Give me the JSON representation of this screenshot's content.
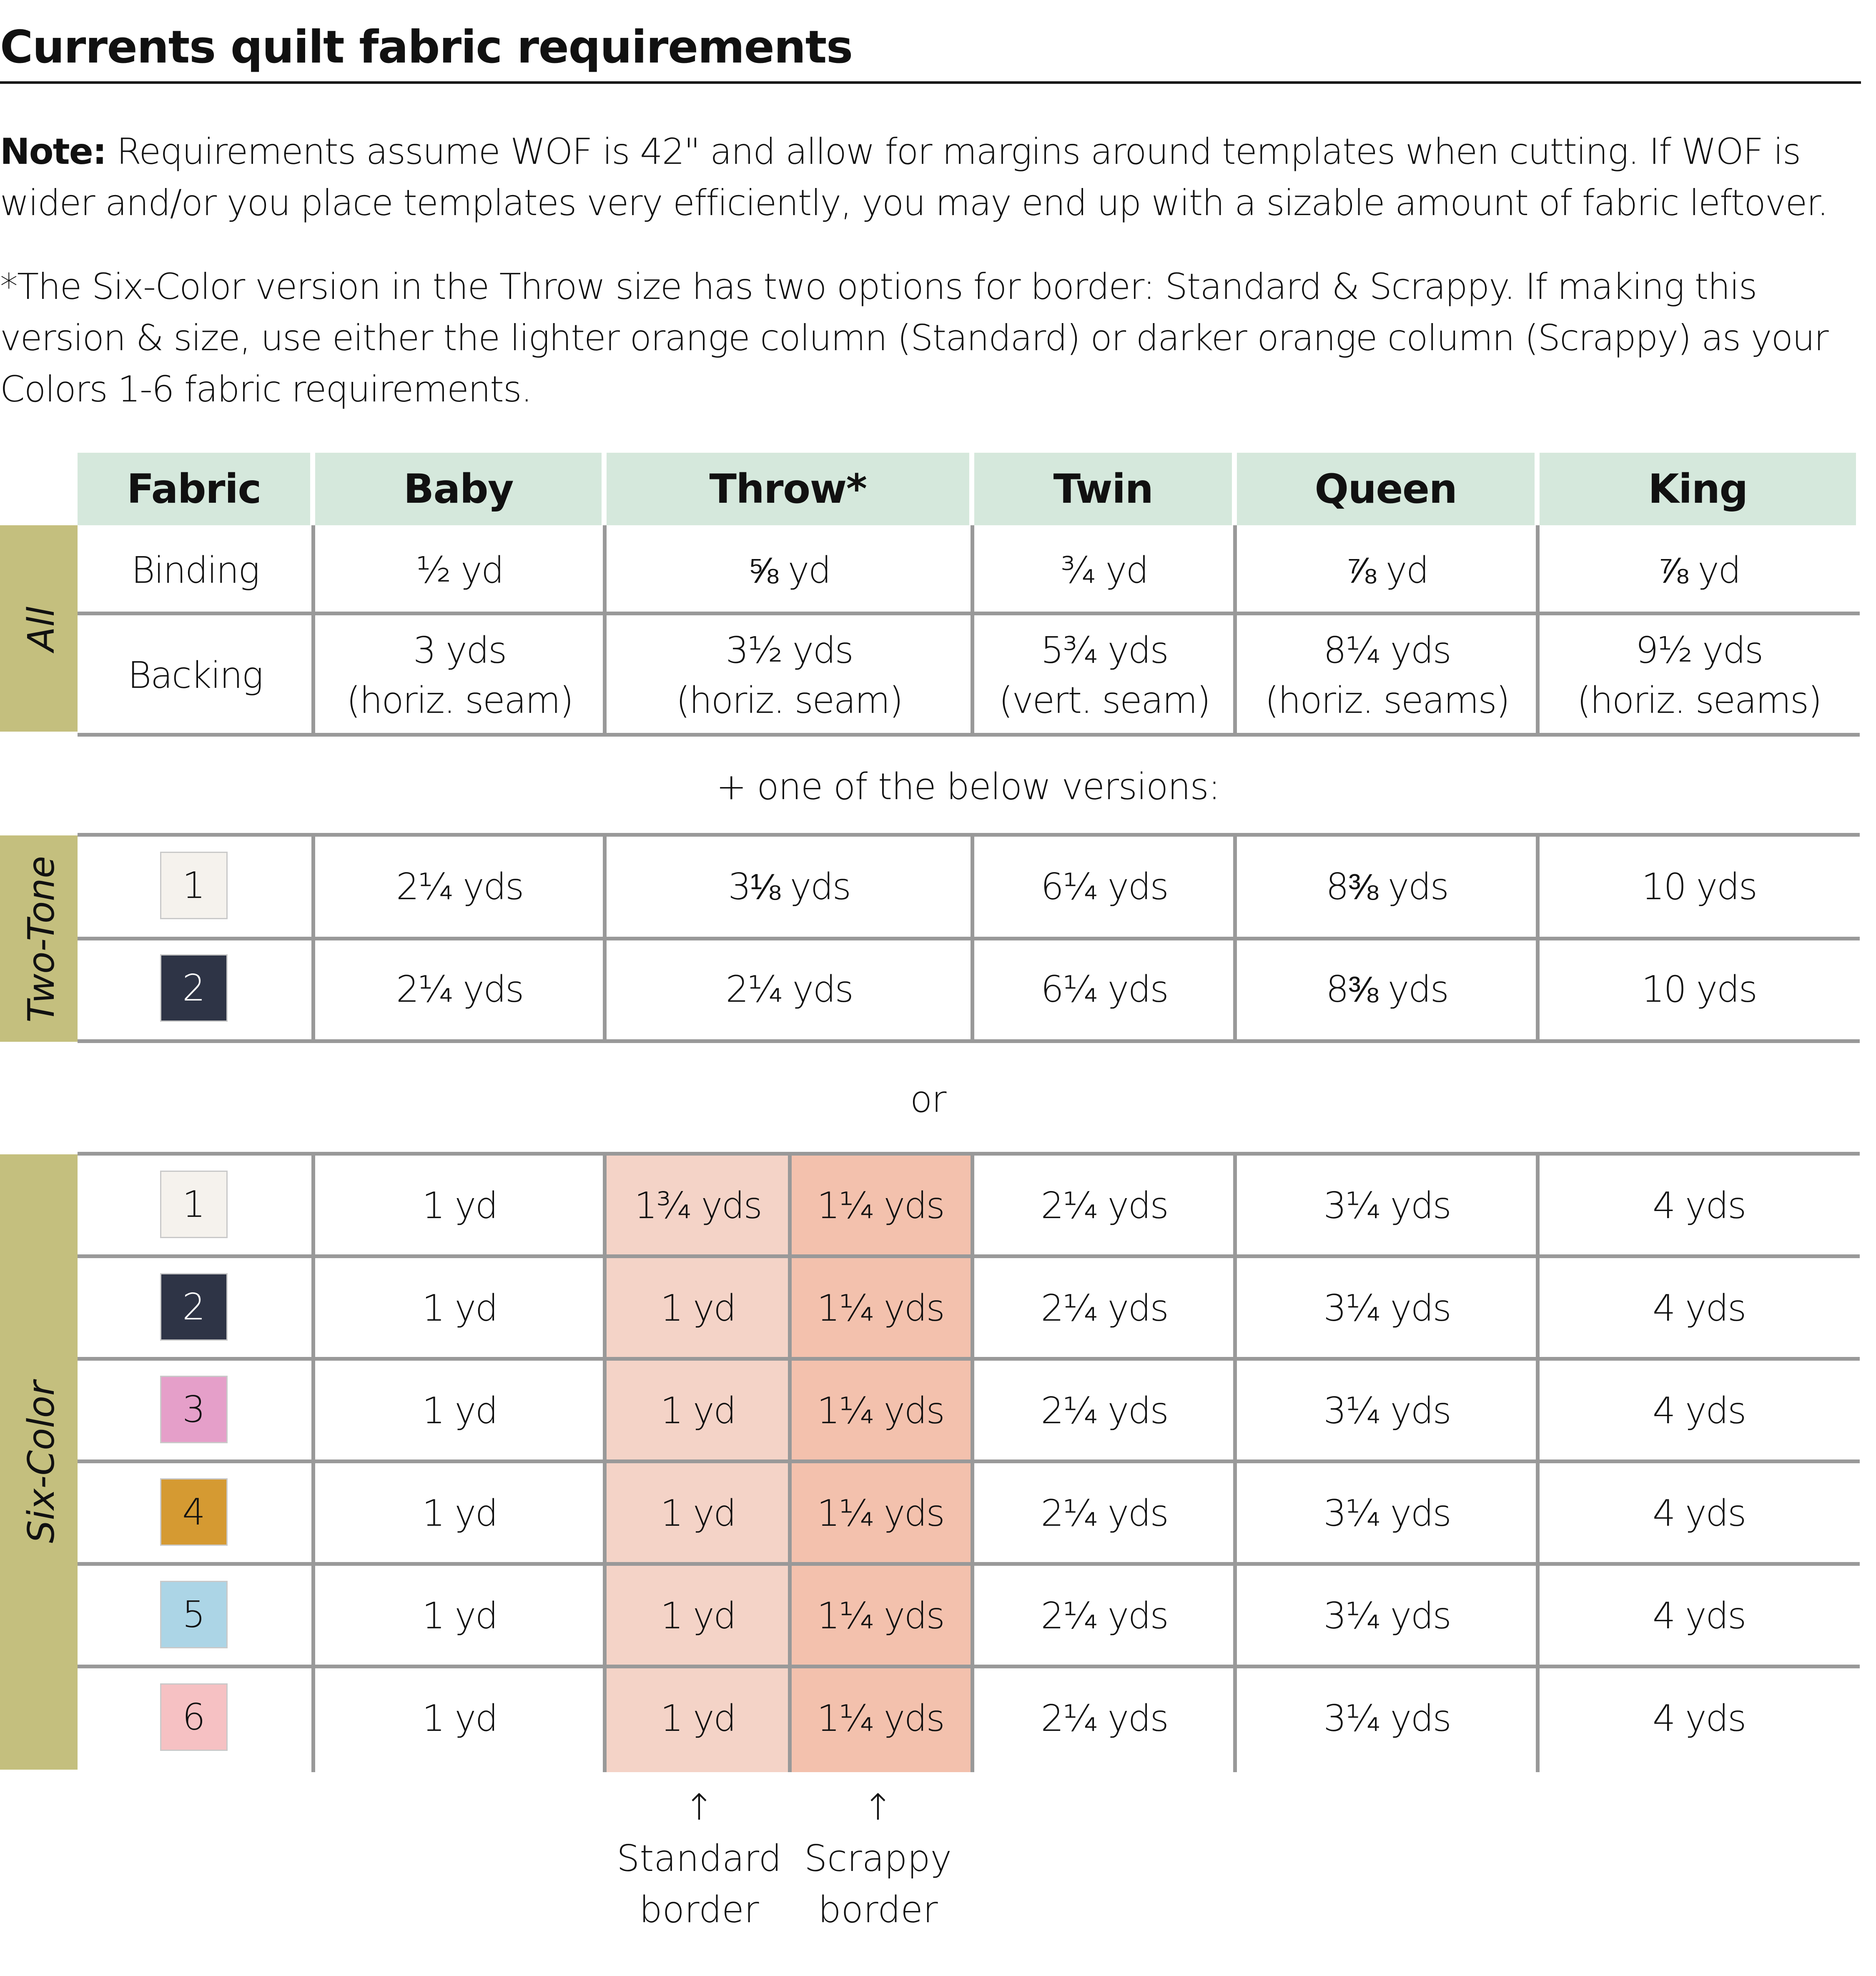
{
  "title": "Currents quilt fabric requirements",
  "note": {
    "label": "Note:",
    "text": " Requirements assume WOF is 42\" and allow for margins around templates when cutting. If WOF is wider and/or you place templates very efficiently, you may end up with a sizable amount of fabric leftover."
  },
  "footnote": "*The Six-Color version in the Throw size has two options for border: Standard & Scrappy. If making this version & size, use either the lighter orange column (Standard) or darker orange column (Scrappy) as your Colors 1-6 fabric requirements.",
  "colors": {
    "header": "#d5e8dc",
    "group_band": "#c4bf7e",
    "standard_border": "#f4d3c7",
    "scrappy_border": "#f3c1ad",
    "grid": "#999999"
  },
  "table": {
    "headers": [
      "Fabric",
      "Baby",
      "Throw*",
      "Twin",
      "Queen",
      "King"
    ],
    "all": {
      "group_label": "All",
      "rows": [
        {
          "fabric": "Binding",
          "values": [
            "½ yd",
            "⅝ yd",
            "¾ yd",
            "⅞ yd",
            "⅞ yd"
          ]
        },
        {
          "fabric": "Backing",
          "values": [
            "3 yds\n(horiz. seam)",
            "3½ yds\n(horiz. seam)",
            "5¾ yds\n(vert. seam)",
            "8¼ yds\n(horiz. seams)",
            "9½ yds\n(horiz. seams)"
          ]
        }
      ]
    },
    "separator_1": "+ one of the below versions:",
    "two_tone": {
      "group_label": "Two-Tone",
      "rows": [
        {
          "color_number": "1",
          "swatch": "#f5f2ed",
          "values": [
            "2¼ yds",
            "3⅛ yds",
            "6¼ yds",
            "8⅜ yds",
            "10 yds"
          ]
        },
        {
          "color_number": "2",
          "swatch": "#2e3446",
          "values": [
            "2¼ yds",
            "2¼ yds",
            "6¼ yds",
            "8⅜ yds",
            "10 yds"
          ]
        }
      ]
    },
    "separator_2": "or",
    "six_color": {
      "group_label": "Six-Color",
      "rows": [
        {
          "color_number": "1",
          "swatch": "#f5f2ed",
          "baby": "1 yd",
          "throw_standard": "1¾ yds",
          "throw_scrappy": "1¼ yds",
          "twin": "2¼ yds",
          "queen": "3¼ yds",
          "king": "4 yds"
        },
        {
          "color_number": "2",
          "swatch": "#2e3446",
          "baby": "1 yd",
          "throw_standard": "1 yd",
          "throw_scrappy": "1¼ yds",
          "twin": "2¼ yds",
          "queen": "3¼ yds",
          "king": "4 yds"
        },
        {
          "color_number": "3",
          "swatch": "#e59fc9",
          "baby": "1 yd",
          "throw_standard": "1 yd",
          "throw_scrappy": "1¼ yds",
          "twin": "2¼ yds",
          "queen": "3¼ yds",
          "king": "4 yds"
        },
        {
          "color_number": "4",
          "swatch": "#d59a32",
          "baby": "1 yd",
          "throw_standard": "1 yd",
          "throw_scrappy": "1¼ yds",
          "twin": "2¼ yds",
          "queen": "3¼ yds",
          "king": "4 yds"
        },
        {
          "color_number": "5",
          "swatch": "#acd5e6",
          "baby": "1 yd",
          "throw_standard": "1 yd",
          "throw_scrappy": "1¼ yds",
          "twin": "2¼ yds",
          "queen": "3¼ yds",
          "king": "4 yds"
        },
        {
          "color_number": "6",
          "swatch": "#f6c1c3",
          "baby": "1 yd",
          "throw_standard": "1 yd",
          "throw_scrappy": "1¼ yds",
          "twin": "2¼ yds",
          "queen": "3¼ yds",
          "king": "4 yds"
        }
      ]
    },
    "arrow_labels": {
      "standard": "↑\nStandard\nborder",
      "scrappy": "↑\nScrappy\nborder"
    }
  }
}
